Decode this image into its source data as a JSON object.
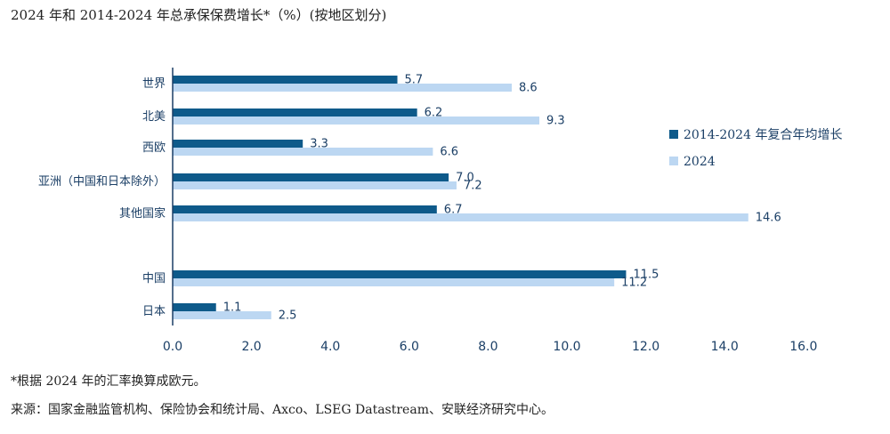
{
  "title": "2024 年和 2014-2024 年总承保保费增长*（%）(按地区划分)",
  "footnote": "*根据 2024 年的汇率换算成欧元。",
  "source": "来源：国家金融监管机构、保险协会和统计局、Axco、LSEG Datastream、安联经济研究中心。",
  "chart_data": {
    "type": "bar",
    "orientation": "horizontal",
    "categories": [
      "世界",
      "北美",
      "西欧",
      "亚洲（中国和日本除外）",
      "其他国家",
      "中国",
      "日本"
    ],
    "series": [
      {
        "name": "2014-2024 年复合年均增长",
        "color": "#0e5a8a",
        "values": [
          5.7,
          6.2,
          3.3,
          7.0,
          6.7,
          11.5,
          1.1
        ]
      },
      {
        "name": "2024",
        "color": "#bcd7f2",
        "values": [
          8.6,
          9.3,
          6.6,
          7.2,
          14.6,
          11.2,
          2.5
        ]
      }
    ],
    "value_labels": [
      [
        "5.7",
        "6.2",
        "3.3",
        "7.0",
        "6.7",
        "11.5",
        "1.1"
      ],
      [
        "8.6",
        "9.3",
        "6.6",
        "7.2",
        "14.6",
        "11.2",
        "2.5"
      ]
    ],
    "xlim": [
      0,
      16
    ],
    "xticks": [
      "0.0",
      "2.0",
      "4.0",
      "6.0",
      "8.0",
      "10.0",
      "12.0",
      "14.0",
      "16.0"
    ],
    "legend_position": "right",
    "grid": false
  }
}
